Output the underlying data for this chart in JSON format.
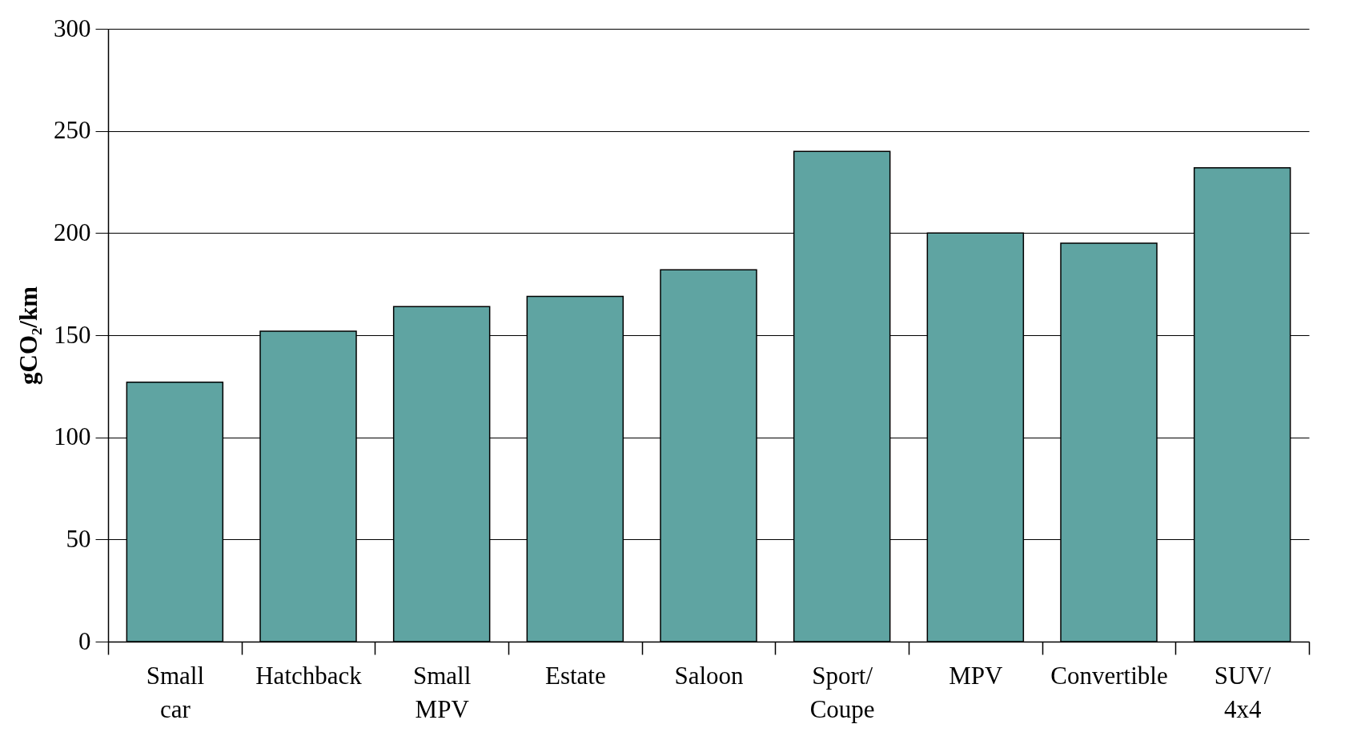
{
  "chart_data": {
    "type": "bar",
    "ylabel": "gCO₂/km",
    "categories": [
      "Small car",
      "Hatchback",
      "Small MPV",
      "Estate",
      "Saloon",
      "Sport/Coupe",
      "MPV",
      "Convertible",
      "SUV/4x4"
    ],
    "values": [
      127,
      152,
      164,
      169,
      182,
      240,
      200,
      195,
      232
    ],
    "color": "#5fa4a2",
    "ylim": [
      0,
      300
    ],
    "yticks": [
      0,
      50,
      100,
      150,
      200,
      250,
      300
    ],
    "grid": "y"
  }
}
